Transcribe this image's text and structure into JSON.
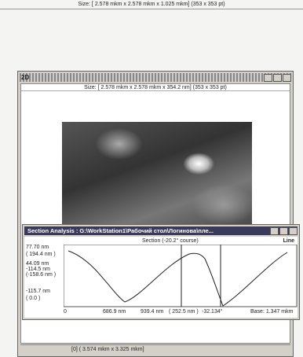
{
  "top_size": "Size: [ 2.578 mkm x 2.578 mkm x 1.025 mkm] (353 x 353 pt)",
  "window": {
    "title": "2D",
    "size": "Size: [ 2.578 mkm x 2.578 mkm x 354.2 nm] (353 x 353 pt)"
  },
  "section": {
    "title": "Section Analysis : G:\\WorkStation1\\Рабочий стол\\Логинова\\пле...",
    "caption": "Section (-20.2° course)",
    "mode": "Line",
    "left_labels": [
      "77.70 nm",
      "( 194.4 nm )",
      "44.09 nm",
      "-114.5 nm",
      "(-158.6 nm )",
      "-115.7 nm",
      "( 0.0 )"
    ],
    "bottom_labels": [
      "0",
      "686.9 nm",
      "939.4 nm",
      "( 252.5 nm )",
      "-32.134°",
      "Base: 1.347 mkm"
    ]
  },
  "status": {
    "text": "[0] ( 3.574 mkm x 3.325 mkm]"
  }
}
